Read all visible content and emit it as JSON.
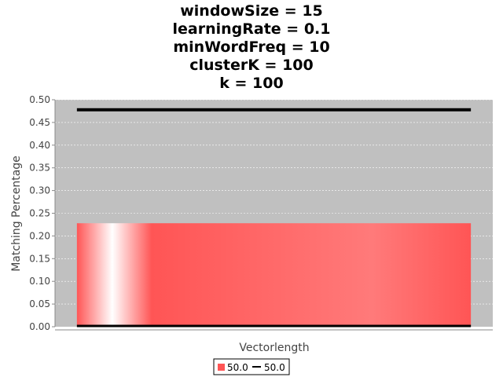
{
  "chart_data": {
    "type": "bar",
    "title_lines": [
      "windowSize = 15",
      "learningRate = 0.1",
      "minWordFreq = 10",
      "clusterK = 100",
      "k = 100"
    ],
    "xlabel": "Vectorlength",
    "ylabel": "Matching Percentage",
    "ylim": [
      0,
      0.5
    ],
    "yticks": [
      "0.00",
      "0.05",
      "0.10",
      "0.15",
      "0.20",
      "0.25",
      "0.30",
      "0.35",
      "0.40",
      "0.45",
      "0.50"
    ],
    "grid": true,
    "legend_position": "bottom",
    "categories": [
      ""
    ],
    "series": [
      {
        "name": "50.0",
        "type": "bar",
        "values": [
          0.228
        ],
        "color": "#ff5555"
      },
      {
        "name": "50.0",
        "type": "line",
        "values": [
          0.478
        ],
        "color": "#000000"
      }
    ],
    "plot_background": "#c0c0c0"
  }
}
